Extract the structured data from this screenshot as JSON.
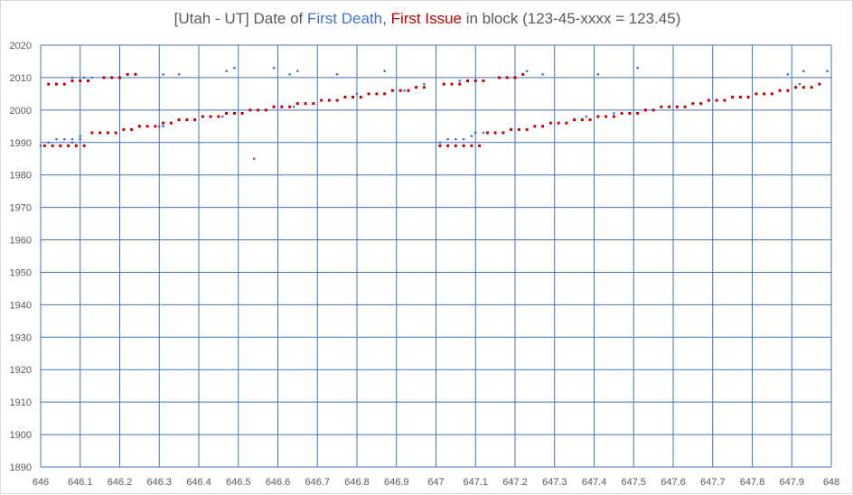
{
  "title": {
    "part1": "[Utah - UT] Date of ",
    "series1_name": "First Death",
    "comma": ", ",
    "series2_name": "First Issue",
    "part2": " in block (123-45-xxxx = 123.45)"
  },
  "colors": {
    "grid": "#4472c4",
    "first_death": "#4472c4",
    "first_issue": "#c00000",
    "text": "#595959"
  },
  "chart_data": {
    "type": "scatter",
    "title": "[Utah - UT] Date of First Death, First Issue in block (123-45-xxxx = 123.45)",
    "xlim": [
      646,
      648
    ],
    "ylim": [
      1890,
      2020
    ],
    "x_ticks": [
      "646",
      "646.1",
      "646.2",
      "646.3",
      "646.4",
      "646.5",
      "646.6",
      "646.7",
      "646.8",
      "646.9",
      "647",
      "647.1",
      "647.2",
      "647.3",
      "647.4",
      "647.5",
      "647.6",
      "647.7",
      "647.8",
      "647.9",
      "648"
    ],
    "y_ticks": [
      "2020",
      "2010",
      "2000",
      "1990",
      "1980",
      "1970",
      "1960",
      "1950",
      "1940",
      "1930",
      "1920",
      "1910",
      "1900",
      "1890"
    ],
    "grid": true,
    "legend": "none",
    "series": [
      {
        "name": "First Death",
        "color": "#4472c4",
        "points": [
          [
            646.0,
            1989
          ],
          [
            646.02,
            1990
          ],
          [
            646.04,
            1991
          ],
          [
            646.06,
            1991
          ],
          [
            646.08,
            1991
          ],
          [
            646.08,
            1990
          ],
          [
            646.08,
            2010
          ],
          [
            646.1,
            1991
          ],
          [
            646.1,
            1992
          ],
          [
            646.11,
            2010
          ],
          [
            646.13,
            2010
          ],
          [
            646.18,
            2010
          ],
          [
            646.2,
            2010
          ],
          [
            646.23,
            1994
          ],
          [
            646.3,
            1995
          ],
          [
            646.31,
            1995
          ],
          [
            646.31,
            2011
          ],
          [
            646.35,
            2011
          ],
          [
            646.46,
            1998
          ],
          [
            646.47,
            2012
          ],
          [
            646.49,
            2013
          ],
          [
            646.54,
            1985
          ],
          [
            646.59,
            2013
          ],
          [
            646.63,
            2011
          ],
          [
            646.64,
            2001
          ],
          [
            646.65,
            2012
          ],
          [
            646.75,
            2011
          ],
          [
            646.8,
            2005
          ],
          [
            646.87,
            2012
          ],
          [
            646.92,
            2006
          ],
          [
            646.97,
            2008
          ],
          [
            647.01,
            1990
          ],
          [
            647.03,
            1991
          ],
          [
            647.05,
            1991
          ],
          [
            647.06,
            2009
          ],
          [
            647.07,
            1991
          ],
          [
            647.09,
            1992
          ],
          [
            647.1,
            1993
          ],
          [
            647.12,
            1993
          ],
          [
            647.2,
            2010
          ],
          [
            647.23,
            2012
          ],
          [
            647.27,
            2011
          ],
          [
            647.38,
            1998
          ],
          [
            647.41,
            2011
          ],
          [
            647.45,
            1999
          ],
          [
            647.51,
            2013
          ],
          [
            647.73,
            2003
          ],
          [
            647.89,
            2011
          ],
          [
            647.92,
            2008
          ],
          [
            647.93,
            2012
          ],
          [
            647.99,
            2012
          ]
        ]
      },
      {
        "name": "First Issue",
        "color": "#c00000",
        "points": [
          [
            646.01,
            1989
          ],
          [
            646.02,
            2008
          ],
          [
            646.03,
            1989
          ],
          [
            646.04,
            2008
          ],
          [
            646.05,
            1989
          ],
          [
            646.06,
            2008
          ],
          [
            646.07,
            1989
          ],
          [
            646.08,
            2009
          ],
          [
            646.09,
            1989
          ],
          [
            646.1,
            2009
          ],
          [
            646.11,
            1989
          ],
          [
            646.12,
            2009
          ],
          [
            646.13,
            1993
          ],
          [
            646.15,
            1993
          ],
          [
            646.16,
            2010
          ],
          [
            646.17,
            1993
          ],
          [
            646.18,
            2010
          ],
          [
            646.19,
            1993
          ],
          [
            646.2,
            2010
          ],
          [
            646.21,
            1994
          ],
          [
            646.22,
            2011
          ],
          [
            646.23,
            1994
          ],
          [
            646.24,
            2011
          ],
          [
            646.25,
            1995
          ],
          [
            646.27,
            1995
          ],
          [
            646.29,
            1995
          ],
          [
            646.31,
            1996
          ],
          [
            646.33,
            1996
          ],
          [
            646.35,
            1997
          ],
          [
            646.37,
            1997
          ],
          [
            646.39,
            1997
          ],
          [
            646.41,
            1998
          ],
          [
            646.43,
            1998
          ],
          [
            646.45,
            1998
          ],
          [
            646.47,
            1999
          ],
          [
            646.49,
            1999
          ],
          [
            646.51,
            1999
          ],
          [
            646.53,
            2000
          ],
          [
            646.55,
            2000
          ],
          [
            646.57,
            2000
          ],
          [
            646.59,
            2001
          ],
          [
            646.61,
            2001
          ],
          [
            646.63,
            2001
          ],
          [
            646.65,
            2002
          ],
          [
            646.67,
            2002
          ],
          [
            646.69,
            2002
          ],
          [
            646.71,
            2003
          ],
          [
            646.73,
            2003
          ],
          [
            646.75,
            2003
          ],
          [
            646.77,
            2004
          ],
          [
            646.79,
            2004
          ],
          [
            646.81,
            2004
          ],
          [
            646.83,
            2005
          ],
          [
            646.85,
            2005
          ],
          [
            646.87,
            2005
          ],
          [
            646.89,
            2006
          ],
          [
            646.91,
            2006
          ],
          [
            646.93,
            2006
          ],
          [
            646.95,
            2007
          ],
          [
            646.97,
            2007
          ],
          [
            647.01,
            1989
          ],
          [
            647.02,
            2008
          ],
          [
            647.03,
            1989
          ],
          [
            647.04,
            2008
          ],
          [
            647.05,
            1989
          ],
          [
            647.06,
            2008
          ],
          [
            647.07,
            1989
          ],
          [
            647.08,
            2009
          ],
          [
            647.09,
            1989
          ],
          [
            647.1,
            2009
          ],
          [
            647.11,
            1989
          ],
          [
            647.12,
            2009
          ],
          [
            647.13,
            1993
          ],
          [
            647.15,
            1993
          ],
          [
            647.16,
            2010
          ],
          [
            647.17,
            1993
          ],
          [
            647.18,
            2010
          ],
          [
            647.19,
            1994
          ],
          [
            647.2,
            2010
          ],
          [
            647.21,
            1994
          ],
          [
            647.22,
            2011
          ],
          [
            647.23,
            1994
          ],
          [
            647.25,
            1995
          ],
          [
            647.27,
            1995
          ],
          [
            647.29,
            1996
          ],
          [
            647.31,
            1996
          ],
          [
            647.33,
            1996
          ],
          [
            647.35,
            1997
          ],
          [
            647.37,
            1997
          ],
          [
            647.39,
            1997
          ],
          [
            647.41,
            1998
          ],
          [
            647.43,
            1998
          ],
          [
            647.45,
            1998
          ],
          [
            647.47,
            1999
          ],
          [
            647.49,
            1999
          ],
          [
            647.51,
            1999
          ],
          [
            647.53,
            2000
          ],
          [
            647.55,
            2000
          ],
          [
            647.57,
            2001
          ],
          [
            647.59,
            2001
          ],
          [
            647.61,
            2001
          ],
          [
            647.63,
            2001
          ],
          [
            647.65,
            2002
          ],
          [
            647.67,
            2002
          ],
          [
            647.69,
            2003
          ],
          [
            647.71,
            2003
          ],
          [
            647.73,
            2003
          ],
          [
            647.75,
            2004
          ],
          [
            647.77,
            2004
          ],
          [
            647.79,
            2004
          ],
          [
            647.81,
            2005
          ],
          [
            647.83,
            2005
          ],
          [
            647.85,
            2005
          ],
          [
            647.87,
            2006
          ],
          [
            647.89,
            2006
          ],
          [
            647.91,
            2007
          ],
          [
            647.93,
            2007
          ],
          [
            647.95,
            2007
          ],
          [
            647.97,
            2008
          ]
        ]
      }
    ]
  }
}
